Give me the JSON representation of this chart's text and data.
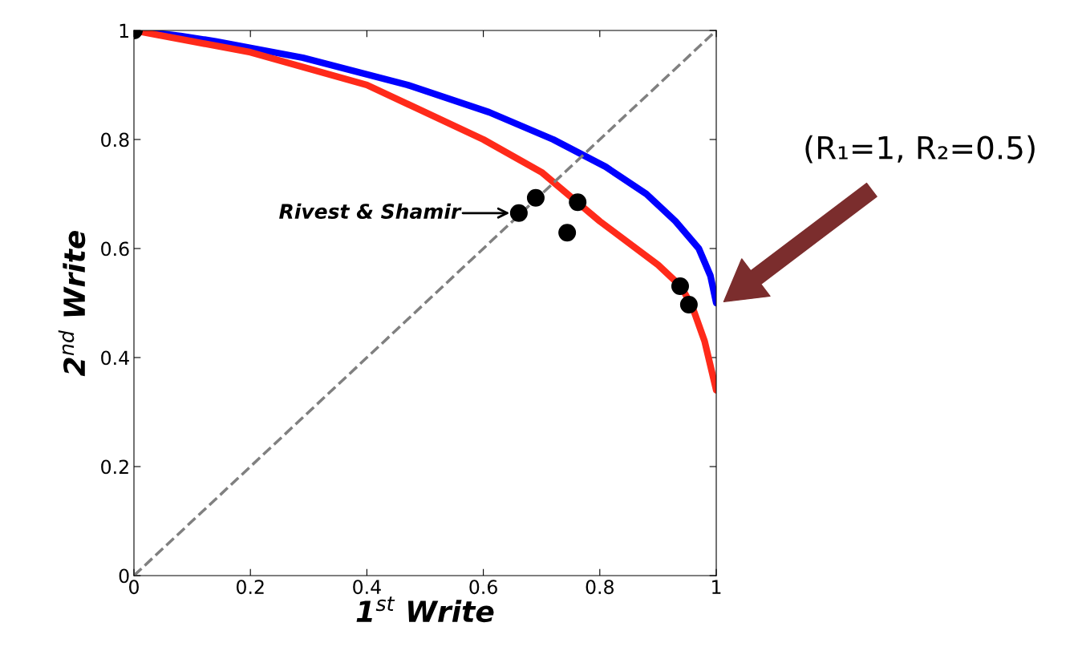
{
  "chart_data": {
    "type": "line",
    "xlabel": "1$^{st}$ Write",
    "ylabel": "2$^{nd}$ Write",
    "xlim": [
      0,
      1
    ],
    "ylim": [
      0,
      1
    ],
    "xticks": [
      0,
      0.2,
      0.4,
      0.6,
      0.8,
      1
    ],
    "yticks": [
      0,
      0.2,
      0.4,
      0.6,
      0.8,
      1
    ],
    "grid": false,
    "legend": false,
    "series": [
      {
        "color": "#0000ff",
        "x": [
          0,
          0.08,
          0.14,
          0.29,
          0.47,
          0.61,
          0.72,
          0.81,
          0.88,
          0.93,
          0.97,
          0.99,
          1
        ],
        "values": [
          1,
          0.99,
          0.98,
          0.95,
          0.9,
          0.85,
          0.8,
          0.75,
          0.7,
          0.65,
          0.6,
          0.55,
          0.5
        ]
      },
      {
        "color": "#ff2a1a",
        "x": [
          0,
          0.1,
          0.2,
          0.4,
          0.6,
          0.7,
          0.8,
          0.9,
          0.94,
          0.96,
          0.98,
          1
        ],
        "values": [
          1,
          0.98,
          0.96,
          0.9,
          0.8,
          0.74,
          0.65,
          0.57,
          0.53,
          0.49,
          0.43,
          0.34
        ]
      },
      {
        "color": "#808080",
        "line_style": "dashed",
        "x": [
          0,
          1
        ],
        "values": [
          0,
          1
        ]
      },
      {
        "type": "scatter",
        "color": "#000000",
        "marker": "circle",
        "x": [
          0,
          0.661,
          0.69,
          0.744,
          0.762,
          0.938,
          0.953
        ],
        "values": [
          1,
          0.665,
          0.693,
          0.629,
          0.685,
          0.531,
          0.497
        ]
      }
    ],
    "annotations": [
      {
        "text": "Rivest & Shamir",
        "x": 0.661,
        "y": 0.665
      },
      "(R₁=1, R₂=0.5)"
    ]
  }
}
